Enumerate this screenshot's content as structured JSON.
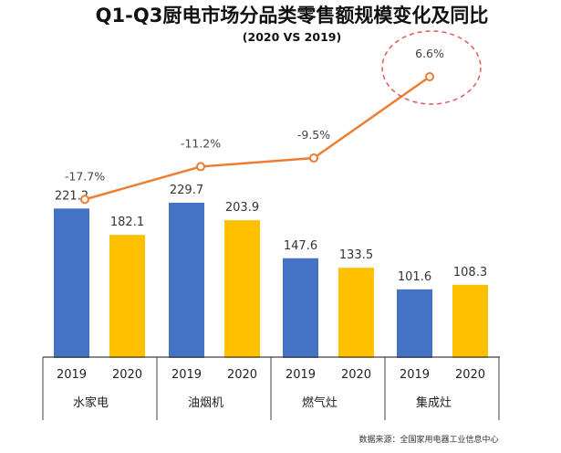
{
  "title": "Q1-Q3厨电市场分品类零售额规模变化及同比",
  "subtitle": "(2020 VS 2019)",
  "source": "数据来源：全国家用电器工业信息中心",
  "colors": {
    "bar_2019": "#4472C4",
    "bar_2020": "#FFC000",
    "line": "#ED7D31",
    "highlight": "#E05A5A",
    "axis": "#404040"
  },
  "chart_data": {
    "type": "bar",
    "categories": [
      "水家电",
      "油烟机",
      "燃气灶",
      "集成灶"
    ],
    "groups": [
      "2019",
      "2020"
    ],
    "series": [
      {
        "name": "2019",
        "values": [
          221.2,
          229.7,
          147.6,
          101.6
        ]
      },
      {
        "name": "2020",
        "values": [
          182.1,
          203.9,
          133.5,
          108.3
        ]
      }
    ],
    "value_labels": [
      [
        "221.2",
        "182.1"
      ],
      [
        "229.7",
        "203.9"
      ],
      [
        "147.6",
        "133.5"
      ],
      [
        "101.6",
        "108.3"
      ]
    ],
    "growth": {
      "type": "line",
      "values": [
        -17.7,
        -11.2,
        -9.5,
        6.6
      ],
      "labels": [
        "-17.7%",
        "-11.2%",
        "-9.5%",
        "6.6%"
      ],
      "highlighted": "6.6%"
    }
  }
}
